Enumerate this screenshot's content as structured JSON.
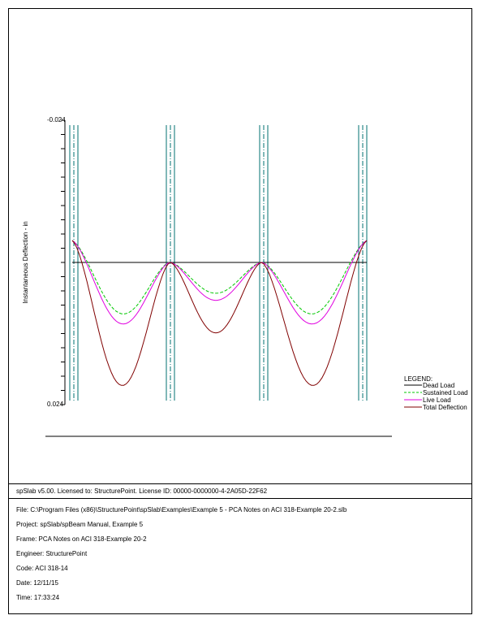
{
  "chart_data": {
    "type": "line",
    "ylabel": "Instantaneous Deflection - in",
    "y_top_label": "-0.024",
    "y_bottom_label": "0.024",
    "ylim": [
      -0.024,
      0.024
    ],
    "y_inverted": true,
    "grid": false,
    "legend_title": "LEGEND:",
    "legend_position": "bottom-right",
    "spans": [
      {
        "start": 0,
        "end": 1,
        "length_rel": 1.1
      },
      {
        "start": 1,
        "end": 2,
        "length_rel": 0.9
      },
      {
        "start": 2,
        "end": 3,
        "length_rel": 1.1
      }
    ],
    "series": [
      {
        "name": "Dead Load",
        "color": "#000000",
        "dash": "solid",
        "support_values": [
          0,
          0,
          0,
          0,
          0
        ],
        "midspan_values": [
          0,
          0,
          0
        ]
      },
      {
        "name": "Sustained Load",
        "color": "#00c800",
        "dash": "dashed",
        "support_values": [
          -0.0037,
          0,
          0,
          0,
          -0.0037
        ],
        "midspan_values": [
          0.0105,
          0.0052,
          0.0105
        ]
      },
      {
        "name": "Live Load",
        "color": "#e000e0",
        "dash": "solid",
        "support_values": [
          -0.0037,
          0,
          0,
          0,
          -0.0037
        ],
        "midspan_values": [
          0.0122,
          0.0064,
          0.0122
        ]
      },
      {
        "name": "Total Deflection",
        "color": "#800000",
        "dash": "solid",
        "support_values": [
          -0.0037,
          0,
          0,
          0,
          -0.0037
        ],
        "midspan_values": [
          0.0226,
          0.0119,
          0.0226
        ]
      }
    ],
    "column_color": "#007070"
  },
  "footer": {
    "license": "spSlab v5.00. Licensed to: StructurePoint. License ID: 00000-0000000-4-2A05D-22F62",
    "file": "File: C:\\Program Files (x86)\\StructurePoint\\spSlab\\Examples\\Example 5 - PCA Notes on ACI 318-Example 20-2.slb",
    "project": "Project: spSlab/spBeam Manual, Example 5",
    "frame": "Frame: PCA Notes on ACI 318-Example 20-2",
    "engineer": "Engineer: StructurePoint",
    "code": "Code: ACI 318-14",
    "date": "Date: 12/11/15",
    "time": "Time: 17:33:24"
  }
}
